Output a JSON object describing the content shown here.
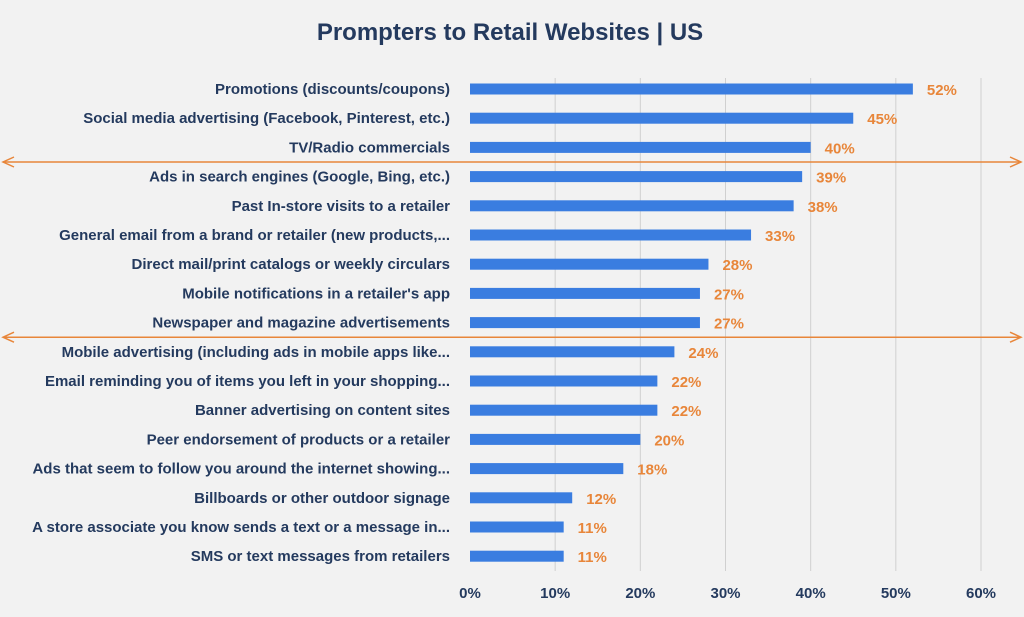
{
  "chart_data": {
    "type": "bar",
    "orientation": "horizontal",
    "title": "Prompters to Retail Websites | US",
    "xlabel": "",
    "ylabel": "",
    "categories": [
      "Promotions (discounts/coupons)",
      "Social media advertising (Facebook, Pinterest, etc.)",
      "TV/Radio commercials",
      "Ads in search engines (Google, Bing, etc.)",
      "Past In-store visits to a retailer",
      "General email from a brand or retailer (new products,...",
      "Direct mail/print catalogs or weekly circulars",
      "Mobile notifications in a retailer's app",
      "Newspaper and magazine advertisements",
      "Mobile advertising (including ads in mobile apps like...",
      "Email reminding you of items you left in your shopping...",
      "Banner advertising on content sites",
      "Peer endorsement of products or a retailer",
      "Ads that seem to follow you around the internet showing...",
      "Billboards or other outdoor signage",
      "A store associate you know sends a text or a message in...",
      "SMS or text messages from retailers"
    ],
    "values": [
      52,
      45,
      40,
      39,
      38,
      33,
      28,
      27,
      27,
      24,
      22,
      22,
      20,
      18,
      12,
      11,
      11
    ],
    "value_labels": [
      "52%",
      "45%",
      "40%",
      "39%",
      "38%",
      "33%",
      "28%",
      "27%",
      "27%",
      "24%",
      "22%",
      "22%",
      "20%",
      "18%",
      "12%",
      "11%",
      "11%"
    ],
    "xlim": [
      0,
      60
    ],
    "x_ticks": [
      0,
      10,
      20,
      30,
      40,
      50,
      60
    ],
    "x_tick_labels": [
      "0%",
      "10%",
      "20%",
      "30%",
      "40%",
      "50%",
      "60%"
    ],
    "grid": true,
    "legend": "none",
    "annotations": [
      {
        "type": "double-arrow-line",
        "between_categories": [
          "TV/Radio commercials",
          "Ads in search engines (Google, Bing, etc.)"
        ]
      },
      {
        "type": "double-arrow-line",
        "between_categories": [
          "Newspaper and magazine advertisements",
          "Mobile advertising (including ads in mobile apps like..."
        ]
      }
    ],
    "colors": {
      "bar": "#3a7de0",
      "value_label": "#e8863a",
      "arrow": "#e8863a",
      "text": "#243a5e"
    }
  }
}
